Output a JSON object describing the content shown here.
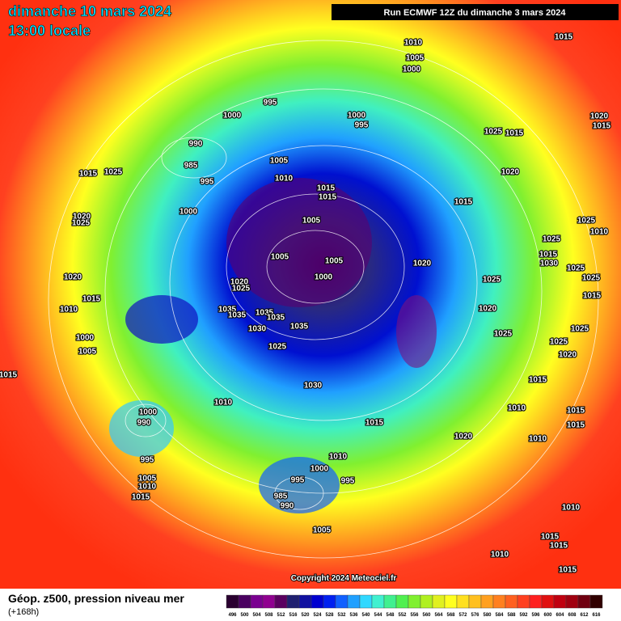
{
  "header": {
    "date": "dimanche 10 mars 2024",
    "time": "13:00 locale",
    "run": "Run ECMWF 12Z du dimanche 3 mars 2024"
  },
  "map": {
    "pressure_labels": [
      1015,
      1010,
      1005,
      1000,
      995,
      1000,
      1000,
      995,
      1025,
      1015,
      1020,
      1015,
      990,
      985,
      1005,
      1010,
      1015,
      1015,
      1020,
      995,
      1015,
      1025,
      1015,
      1000,
      1005,
      1020,
      1025,
      1025,
      1010,
      1025,
      1005,
      1005,
      1020,
      1015,
      1030,
      1025,
      1000,
      1020,
      1025,
      1025,
      1020,
      1025,
      1015,
      1015,
      1010,
      1035,
      1035,
      1035,
      1035,
      1020,
      1030,
      1035,
      1025,
      1025,
      1000,
      1025,
      1025,
      1005,
      1020,
      1015,
      1030,
      1015,
      1010,
      1010,
      1015,
      1015,
      1000,
      990,
      1015,
      1020,
      1010,
      995,
      1010,
      1000,
      1005,
      1010,
      995,
      995,
      1015,
      985,
      990,
      1010,
      1005,
      1015,
      1015,
      1010,
      1015
    ],
    "copyright": "Copyright 2024 Meteociel.fr"
  },
  "footer": {
    "title": "Géop. z500, pression niveau mer",
    "lead": "(+168h)"
  },
  "legend": {
    "values": [
      496,
      500,
      504,
      508,
      512,
      516,
      520,
      524,
      528,
      532,
      536,
      540,
      544,
      548,
      552,
      556,
      560,
      564,
      568,
      572,
      576,
      580,
      584,
      588,
      592,
      596,
      600,
      604,
      608,
      612,
      616
    ],
    "colors": [
      "#2a0030",
      "#4a0060",
      "#7a0090",
      "#900090",
      "#5a0060",
      "#202070",
      "#1010a0",
      "#0000d0",
      "#0020f0",
      "#1060ff",
      "#20a0ff",
      "#30d8ff",
      "#40f0d0",
      "#40f090",
      "#50f050",
      "#80f030",
      "#b0f020",
      "#e0f020",
      "#ffff20",
      "#ffe020",
      "#ffc020",
      "#ffa020",
      "#ff8020",
      "#ff6020",
      "#ff4020",
      "#ff2020",
      "#e01010",
      "#c00010",
      "#a00010",
      "#700010",
      "#300000"
    ]
  }
}
